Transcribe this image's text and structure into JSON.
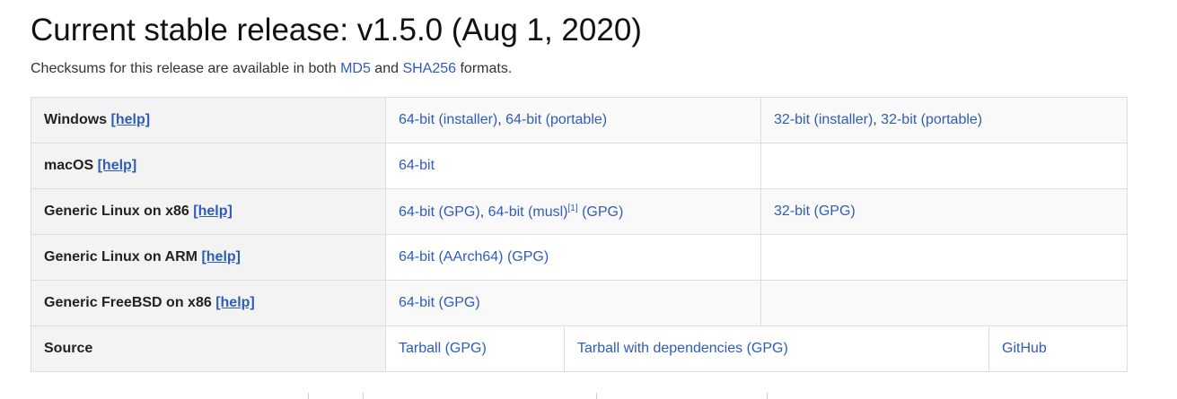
{
  "title": "Current stable release: v1.5.0 (Aug 1, 2020)",
  "checksums": {
    "prefix": "Checksums for this release are available in both ",
    "md5": "MD5",
    "and": " and ",
    "sha256": "SHA256",
    "suffix": " formats."
  },
  "help_label": "[help]",
  "separator": ", ",
  "rows": {
    "windows": {
      "os": "Windows",
      "a": {
        "part1": "64-bit (installer)",
        "part2": "64-bit (portable)"
      },
      "b": {
        "part1": "32-bit (installer)",
        "part2": "32-bit (portable)"
      }
    },
    "macos": {
      "os": "macOS",
      "a": {
        "part1": "64-bit"
      }
    },
    "linux_x86": {
      "os": "Generic Linux on x86",
      "a": {
        "part1": "64-bit",
        "gpg1": "(GPG)",
        "part2": "64-bit (musl)",
        "note": "[1]",
        "gpg2": "(GPG)"
      },
      "b": {
        "part1": "32-bit",
        "gpg1": "(GPG)"
      }
    },
    "linux_arm": {
      "os": "Generic Linux on ARM",
      "a": {
        "part1": "64-bit (AArch64)",
        "gpg1": "(GPG)"
      }
    },
    "freebsd": {
      "os": "Generic FreeBSD on x86",
      "a": {
        "part1": "64-bit",
        "gpg1": "(GPG)"
      }
    },
    "source": {
      "os": "Source",
      "tarball": "Tarball",
      "tarball_gpg": "(GPG)",
      "tarball_deps": "Tarball with dependencies",
      "tarball_deps_gpg": "(GPG)",
      "github": "GitHub"
    }
  },
  "colors": {
    "link": "#2e5cb8",
    "os_cell_bg": "#f3f3f3",
    "stripe_bg": "#f9f9f9",
    "border": "#dddddd"
  }
}
